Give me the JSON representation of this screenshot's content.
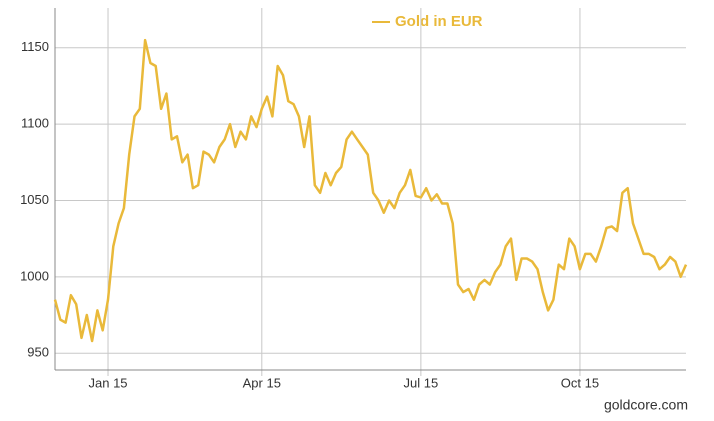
{
  "chart_data": {
    "type": "line",
    "categories": [
      null,
      null,
      null,
      null,
      null,
      null,
      null,
      null,
      null,
      null,
      "Jan 15",
      null,
      null,
      null,
      null,
      null,
      null,
      null,
      null,
      null,
      null,
      null,
      null,
      null,
      null,
      null,
      null,
      null,
      null,
      null,
      null,
      null,
      null,
      null,
      null,
      null,
      null,
      null,
      null,
      "Apr 15",
      null,
      null,
      null,
      null,
      null,
      null,
      null,
      null,
      null,
      null,
      null,
      null,
      null,
      null,
      null,
      null,
      null,
      null,
      null,
      null,
      null,
      null,
      null,
      null,
      null,
      null,
      null,
      null,
      null,
      "Jul 15",
      null,
      null,
      null,
      null,
      null,
      null,
      null,
      null,
      null,
      null,
      null,
      null,
      null,
      null,
      null,
      null,
      null,
      null,
      null,
      null,
      null,
      null,
      null,
      null,
      null,
      null,
      null,
      null,
      null,
      "Oct 15",
      null,
      null,
      null,
      null,
      null,
      null,
      null,
      null,
      null,
      null,
      null,
      null,
      null,
      null,
      null,
      null,
      null,
      null,
      null,
      null
    ],
    "series": [
      {
        "name": "Gold in EUR",
        "color": "#e9b93a",
        "values": [
          985,
          972,
          970,
          988,
          982,
          960,
          975,
          958,
          978,
          965,
          985,
          1020,
          1035,
          1045,
          1080,
          1105,
          1110,
          1155,
          1140,
          1138,
          1110,
          1120,
          1090,
          1092,
          1075,
          1080,
          1058,
          1060,
          1082,
          1080,
          1075,
          1085,
          1090,
          1100,
          1085,
          1095,
          1090,
          1105,
          1098,
          1110,
          1118,
          1105,
          1138,
          1132,
          1115,
          1113,
          1105,
          1085,
          1105,
          1060,
          1055,
          1068,
          1060,
          1068,
          1072,
          1090,
          1095,
          1090,
          1085,
          1080,
          1055,
          1050,
          1042,
          1050,
          1045,
          1055,
          1060,
          1070,
          1053,
          1052,
          1058,
          1050,
          1054,
          1048,
          1048,
          1035,
          995,
          990,
          992,
          985,
          995,
          998,
          995,
          1003,
          1008,
          1020,
          1025,
          998,
          1012,
          1012,
          1010,
          1005,
          990,
          978,
          985,
          1008,
          1005,
          1025,
          1020,
          1005,
          1015,
          1015,
          1010,
          1020,
          1032,
          1033,
          1030,
          1055,
          1058,
          1035,
          1025,
          1015,
          1015,
          1013,
          1005,
          1008,
          1013,
          1010,
          1000,
          1008
        ]
      }
    ],
    "ylim": [
      939,
      1176
    ],
    "yticks": [
      950,
      1000,
      1050,
      1100,
      1150
    ],
    "grid": true,
    "source": "goldcore.com"
  }
}
